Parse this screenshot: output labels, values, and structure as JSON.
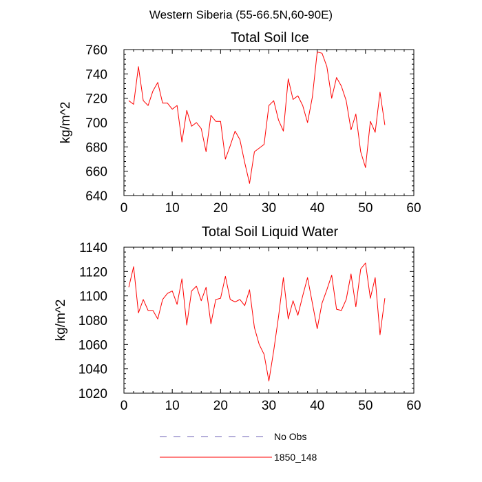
{
  "figure": {
    "title": "Western Siberia (55-66.5N,60-90E)"
  },
  "legend": [
    {
      "label": "No Obs",
      "color": "#6b5fb5",
      "dash": "dashed"
    },
    {
      "label": "1850_148",
      "color": "#ff0000",
      "dash": "solid"
    }
  ],
  "chart_data": [
    {
      "type": "line",
      "title": "Total Soil Ice",
      "xlabel": "",
      "ylabel": "kg/m^2",
      "xlim": [
        0,
        60
      ],
      "ylim": [
        640,
        760
      ],
      "xticks": [
        0,
        10,
        20,
        30,
        40,
        50,
        60
      ],
      "yticks": [
        640,
        660,
        680,
        700,
        720,
        740,
        760
      ],
      "xtick_labels": [
        "0",
        "10",
        "20",
        "30",
        "40",
        "50",
        "60"
      ],
      "ytick_labels": [
        "640",
        "660",
        "680",
        "700",
        "720",
        "740",
        "760"
      ],
      "series": [
        {
          "name": "1850_148",
          "color": "#ff0000",
          "x": [
            1,
            2,
            3,
            4,
            5,
            6,
            7,
            8,
            9,
            10,
            11,
            12,
            13,
            14,
            15,
            16,
            17,
            18,
            19,
            20,
            21,
            22,
            23,
            24,
            25,
            26,
            27,
            28,
            29,
            30,
            31,
            32,
            33,
            34,
            35,
            36,
            37,
            38,
            39,
            40,
            41,
            42,
            43,
            44,
            45,
            46,
            47,
            48,
            49,
            50,
            51,
            52,
            53,
            54
          ],
          "y": [
            718,
            715,
            746,
            718,
            714,
            726,
            733,
            716,
            716,
            711,
            714,
            684,
            710,
            697,
            700,
            695,
            676,
            706,
            701,
            701,
            670,
            681,
            693,
            686,
            667,
            650,
            676,
            679,
            682,
            714,
            718,
            702,
            693,
            736,
            719,
            722,
            714,
            700,
            721,
            758,
            757,
            746,
            720,
            737,
            730,
            718,
            694,
            707,
            676,
            663,
            701,
            692,
            725,
            698
          ]
        }
      ]
    },
    {
      "type": "line",
      "title": "Total Soil Liquid Water",
      "xlabel": "",
      "ylabel": "kg/m^2",
      "xlim": [
        0,
        60
      ],
      "ylim": [
        1020,
        1140
      ],
      "xticks": [
        0,
        10,
        20,
        30,
        40,
        50,
        60
      ],
      "yticks": [
        1020,
        1040,
        1060,
        1080,
        1100,
        1120,
        1140
      ],
      "xtick_labels": [
        "0",
        "10",
        "20",
        "30",
        "40",
        "50",
        "60"
      ],
      "ytick_labels": [
        "1020",
        "1040",
        "1060",
        "1080",
        "1100",
        "1120",
        "1140"
      ],
      "series": [
        {
          "name": "1850_148",
          "color": "#ff0000",
          "x": [
            1,
            2,
            3,
            4,
            5,
            6,
            7,
            8,
            9,
            10,
            11,
            12,
            13,
            14,
            15,
            16,
            17,
            18,
            19,
            20,
            21,
            22,
            23,
            24,
            25,
            26,
            27,
            28,
            29,
            30,
            31,
            32,
            33,
            34,
            35,
            36,
            37,
            38,
            39,
            40,
            41,
            42,
            43,
            44,
            45,
            46,
            47,
            48,
            49,
            50,
            51,
            52,
            53,
            54
          ],
          "y": [
            1107,
            1124,
            1086,
            1097,
            1088,
            1088,
            1081,
            1097,
            1102,
            1104,
            1093,
            1114,
            1076,
            1104,
            1108,
            1096,
            1107,
            1077,
            1097,
            1098,
            1116,
            1097,
            1095,
            1097,
            1092,
            1105,
            1074,
            1060,
            1052,
            1030,
            1055,
            1083,
            1115,
            1081,
            1096,
            1084,
            1100,
            1115,
            1094,
            1073,
            1094,
            1105,
            1117,
            1089,
            1088,
            1097,
            1118,
            1091,
            1122,
            1127,
            1098,
            1115,
            1068,
            1098
          ]
        }
      ]
    }
  ]
}
